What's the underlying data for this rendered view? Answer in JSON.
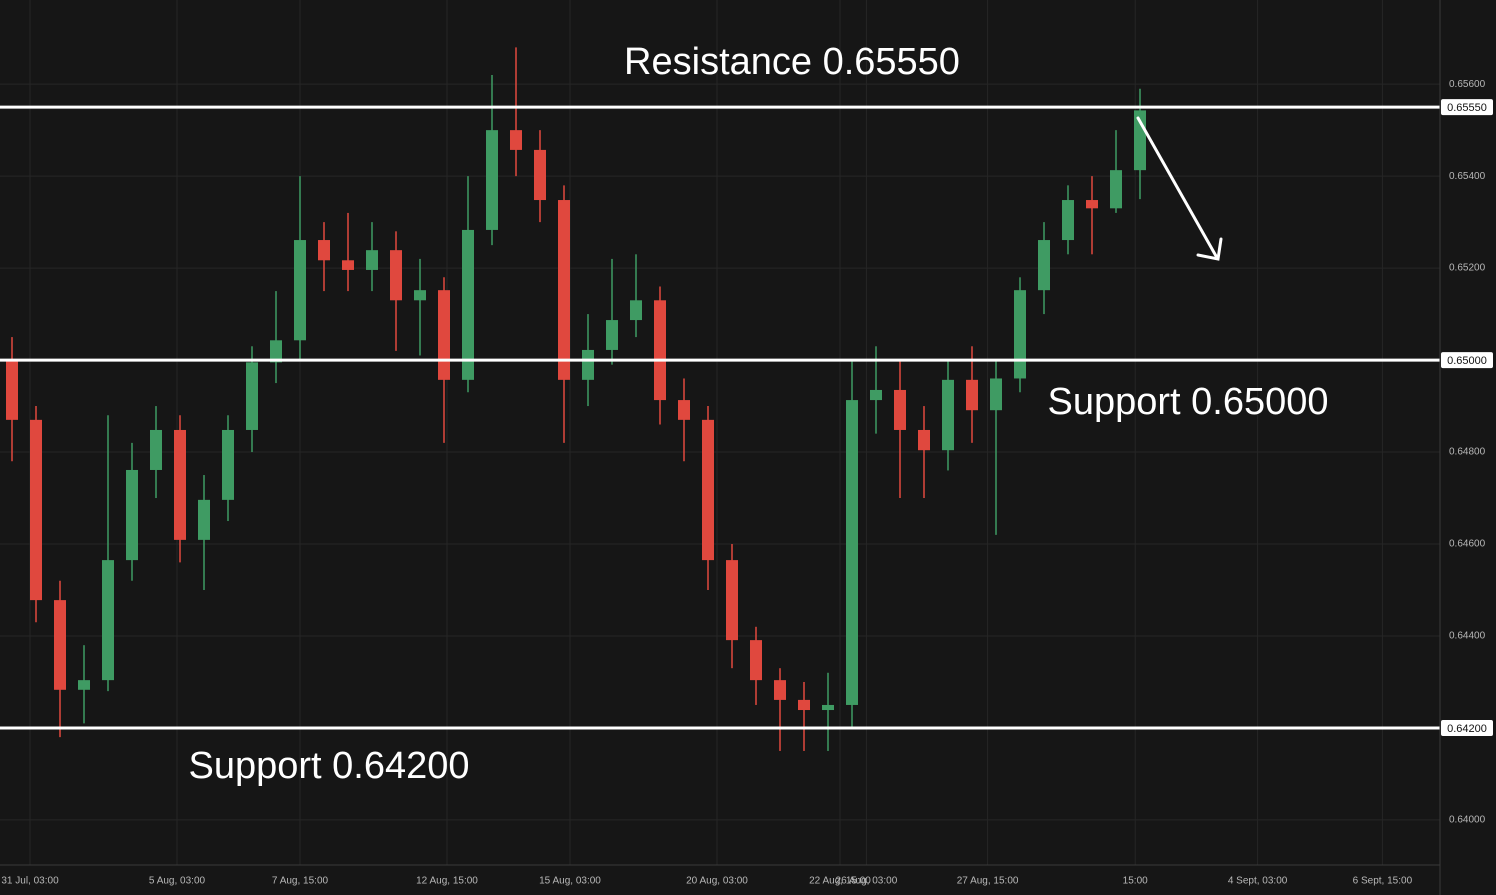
{
  "chart_data": {
    "type": "candlestick",
    "up_color": "#3f9b63",
    "down_color": "#e0483e",
    "level_color": "#ffffff",
    "grid": true,
    "xlim": [
      0,
      120
    ],
    "ylim": [
      0.63902,
      0.65783
    ],
    "yticks": [
      {
        "value": 0.64,
        "label": "0.64000"
      },
      {
        "value": 0.642,
        "label": "0.64200"
      },
      {
        "value": 0.644,
        "label": "0.64400"
      },
      {
        "value": 0.646,
        "label": "0.64600"
      },
      {
        "value": 0.648,
        "label": "0.64800"
      },
      {
        "value": 0.65,
        "label": "0.65000"
      },
      {
        "value": 0.652,
        "label": "0.65200"
      },
      {
        "value": 0.654,
        "label": "0.65400"
      },
      {
        "value": 0.656,
        "label": "0.65600"
      }
    ],
    "xticks": [
      {
        "value": 2.5,
        "label": "31 Jul, 03:00"
      },
      {
        "value": 14.75,
        "label": "5 Aug, 03:00"
      },
      {
        "value": 25,
        "label": "7 Aug, 15:00"
      },
      {
        "value": 37.25,
        "label": "12 Aug, 15:00"
      },
      {
        "value": 47.5,
        "label": "15 Aug, 03:00"
      },
      {
        "value": 59.75,
        "label": "20 Aug, 03:00"
      },
      {
        "value": 70,
        "label": "22 Aug, 15:00"
      },
      {
        "value": 72.2,
        "label": "26 Aug, 03:00"
      },
      {
        "value": 82.3,
        "label": "27 Aug, 15:00"
      },
      {
        "value": 94.6,
        "label": "15:00"
      },
      {
        "value": 104.8,
        "label": "4 Sept, 03:00"
      },
      {
        "value": 115.2,
        "label": "6 Sept, 15:00"
      }
    ],
    "levels": [
      {
        "value": 0.6555,
        "label": "0.65550",
        "annotation": "Resistance 0.65550"
      },
      {
        "value": 0.65,
        "label": "0.65000",
        "annotation": "Support 0.65000"
      },
      {
        "value": 0.642,
        "label": "0.64200",
        "annotation": "Support 0.64200"
      }
    ],
    "x": [
      1,
      3,
      5,
      7,
      9,
      11,
      13,
      15,
      17,
      19,
      21,
      23,
      25,
      27,
      29,
      31,
      33,
      35,
      37,
      39,
      41,
      43,
      45,
      47,
      49,
      51,
      53,
      55,
      57,
      59,
      61,
      63,
      65,
      67,
      69,
      71,
      73,
      75,
      77,
      79,
      81,
      83,
      85,
      87,
      89,
      91,
      93,
      95
    ],
    "open": [
      0.65,
      0.6487,
      0.64478,
      0.64283,
      0.64304,
      0.64565,
      0.64761,
      0.64848,
      0.64609,
      0.64696,
      0.64848,
      0.64995,
      0.65043,
      0.65261,
      0.65217,
      0.65196,
      0.65239,
      0.6513,
      0.65152,
      0.64957,
      0.65283,
      0.655,
      0.65457,
      0.65348,
      0.64957,
      0.65022,
      0.65087,
      0.6513,
      0.64913,
      0.6487,
      0.64565,
      0.64391,
      0.64304,
      0.64261,
      0.64239,
      0.6425,
      0.64913,
      0.64935,
      0.64848,
      0.64804,
      0.64957,
      0.64891,
      0.6496,
      0.65152,
      0.65261,
      0.65348,
      0.6533,
      0.65413
    ],
    "high": [
      0.6505,
      0.649,
      0.6452,
      0.6438,
      0.6488,
      0.6482,
      0.649,
      0.6488,
      0.6475,
      0.6488,
      0.6503,
      0.6515,
      0.654,
      0.653,
      0.6532,
      0.653,
      0.6528,
      0.6522,
      0.6518,
      0.654,
      0.6562,
      0.6568,
      0.655,
      0.6538,
      0.651,
      0.6522,
      0.6523,
      0.6516,
      0.6496,
      0.649,
      0.646,
      0.6442,
      0.6433,
      0.643,
      0.6432,
      0.65,
      0.6503,
      0.65,
      0.649,
      0.65,
      0.6503,
      0.65,
      0.6518,
      0.653,
      0.6538,
      0.654,
      0.655,
      0.6559
    ],
    "low": [
      0.6478,
      0.6443,
      0.6418,
      0.6421,
      0.6428,
      0.6452,
      0.647,
      0.6456,
      0.645,
      0.6465,
      0.648,
      0.6495,
      0.65,
      0.6515,
      0.6515,
      0.6515,
      0.6502,
      0.6501,
      0.6482,
      0.6493,
      0.6525,
      0.654,
      0.653,
      0.6482,
      0.649,
      0.6499,
      0.6505,
      0.6486,
      0.6478,
      0.645,
      0.6433,
      0.6425,
      0.6415,
      0.6415,
      0.6415,
      0.642,
      0.6484,
      0.647,
      0.647,
      0.6476,
      0.6482,
      0.6462,
      0.6493,
      0.651,
      0.6523,
      0.6523,
      0.6532,
      0.6535
    ],
    "close": [
      0.6487,
      0.64478,
      0.64283,
      0.64304,
      0.64565,
      0.64761,
      0.64848,
      0.64609,
      0.64696,
      0.64848,
      0.64995,
      0.65043,
      0.65261,
      0.65217,
      0.65196,
      0.65239,
      0.6513,
      0.65152,
      0.64957,
      0.65283,
      0.655,
      0.65457,
      0.65348,
      0.64957,
      0.65022,
      0.65087,
      0.6513,
      0.64913,
      0.6487,
      0.64565,
      0.64391,
      0.64304,
      0.64261,
      0.64239,
      0.6425,
      0.64913,
      0.64935,
      0.64848,
      0.64804,
      0.64957,
      0.64891,
      0.6496,
      0.65152,
      0.65261,
      0.65348,
      0.6533,
      0.65413,
      0.65543
    ]
  }
}
